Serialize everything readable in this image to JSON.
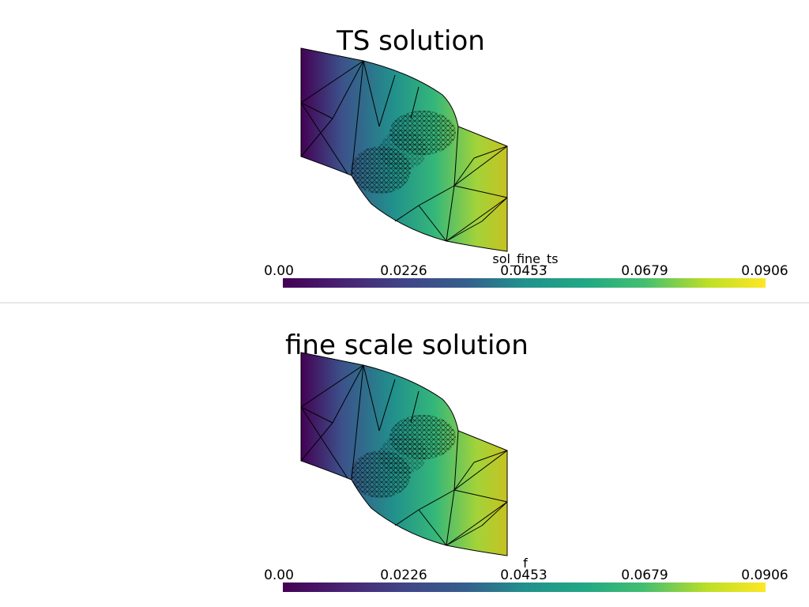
{
  "panels": [
    {
      "title": "TS solution",
      "scalar_bar": {
        "title": "sol_fine_ts",
        "labels": [
          "0.00",
          "0.0226",
          "0.0453",
          "0.0679",
          "0.0906"
        ]
      }
    },
    {
      "title": "fine scale solution",
      "scalar_bar": {
        "title": "f",
        "labels": [
          "0.00",
          "0.0226",
          "0.0453",
          "0.0679",
          "0.0906"
        ]
      }
    }
  ]
}
